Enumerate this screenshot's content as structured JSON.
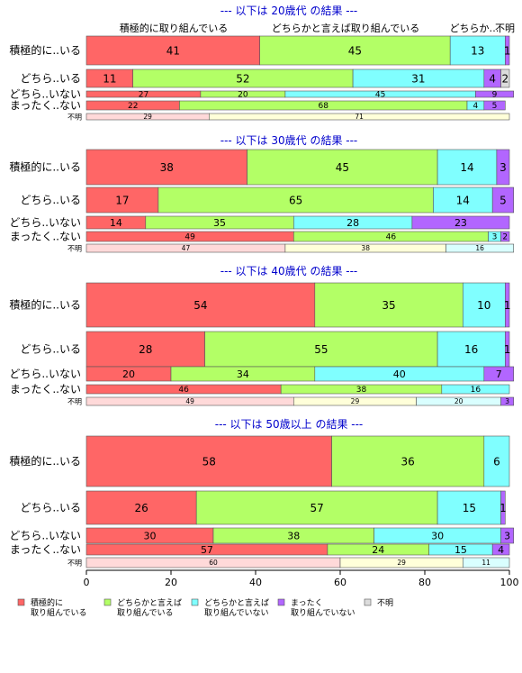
{
  "chart_data": {
    "type": "bar",
    "orientation": "horizontal-stacked",
    "xlim": [
      0,
      100
    ],
    "x_ticks": [
      0,
      20,
      40,
      60,
      80,
      100
    ],
    "grid": false,
    "legend_position": "bottom",
    "colors": [
      "#ff6666",
      "#b3ff66",
      "#80ffff",
      "#b266ff",
      "#dcdcdc"
    ],
    "unknown_row_colors": [
      "#ffd9d9",
      "#ffffd9",
      "#d9ffff"
    ],
    "top_labels": [
      "積極的に取り組んでいる",
      "どちらかと言えば取り組んでいる",
      "どちらか…",
      "不明"
    ],
    "legend": [
      {
        "lines": [
          "積極的に",
          "取り組んでいる"
        ]
      },
      {
        "lines": [
          "どちらかと言えば",
          "取り組んでいる"
        ]
      },
      {
        "lines": [
          "どちらかと言えば",
          "取り組んでいない"
        ]
      },
      {
        "lines": [
          "まったく",
          "取り組んでいない"
        ]
      },
      {
        "lines": [
          "不明"
        ]
      }
    ],
    "panels": [
      {
        "title": "--- 以下は 20歳代 の結果 ---",
        "rows": [
          {
            "label": "積極的に..いる",
            "values": [
              41,
              45,
              13,
              1,
              0
            ]
          },
          {
            "label": "どちら..いる",
            "values": [
              11,
              52,
              31,
              4,
              2
            ]
          },
          {
            "label": "どちら..いない",
            "values": [
              27,
              20,
              45,
              9,
              0
            ]
          },
          {
            "label": "まったく..ない",
            "values": [
              22,
              68,
              4,
              5,
              0
            ]
          },
          {
            "label": "不明",
            "values": [
              29,
              71,
              0,
              0,
              0
            ]
          }
        ]
      },
      {
        "title": "--- 以下は 30歳代 の結果 ---",
        "rows": [
          {
            "label": "積極的に..いる",
            "values": [
              38,
              45,
              14,
              3,
              0
            ]
          },
          {
            "label": "どちら..いる",
            "values": [
              17,
              65,
              14,
              5,
              0
            ]
          },
          {
            "label": "どちら..いない",
            "values": [
              14,
              35,
              28,
              23,
              0
            ]
          },
          {
            "label": "まったく..ない",
            "values": [
              49,
              46,
              3,
              2,
              0
            ]
          },
          {
            "label": "不明",
            "values": [
              47,
              38,
              16,
              0,
              0
            ]
          }
        ]
      },
      {
        "title": "--- 以下は 40歳代 の結果 ---",
        "rows": [
          {
            "label": "積極的に..いる",
            "values": [
              54,
              35,
              10,
              1,
              0
            ]
          },
          {
            "label": "どちら..いる",
            "values": [
              28,
              55,
              16,
              1,
              0
            ]
          },
          {
            "label": "どちら..いない",
            "values": [
              20,
              34,
              40,
              7,
              0
            ]
          },
          {
            "label": "まったく..ない",
            "values": [
              46,
              38,
              16,
              0,
              0
            ]
          },
          {
            "label": "不明",
            "values": [
              49,
              29,
              20,
              3,
              0
            ]
          }
        ]
      },
      {
        "title": "--- 以下は 50歳以上 の結果 ---",
        "rows": [
          {
            "label": "積極的に..いる",
            "values": [
              58,
              36,
              6,
              0,
              0
            ]
          },
          {
            "label": "どちら..いる",
            "values": [
              26,
              57,
              15,
              1,
              0
            ]
          },
          {
            "label": "どちら..いない",
            "values": [
              30,
              38,
              30,
              3,
              0
            ]
          },
          {
            "label": "まったく..ない",
            "values": [
              57,
              24,
              15,
              4,
              0
            ]
          },
          {
            "label": "不明",
            "values": [
              60,
              29,
              11,
              0,
              0
            ]
          }
        ]
      }
    ]
  }
}
